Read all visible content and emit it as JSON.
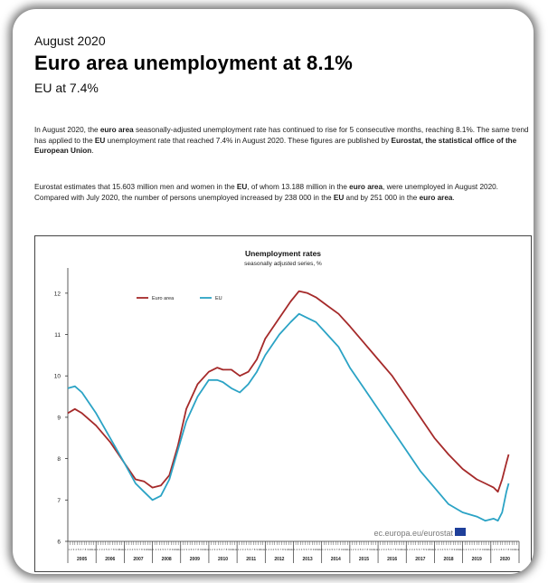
{
  "article": {
    "date": "August 2020",
    "headline": "Euro area unemployment at 8.1%",
    "subheadline": "EU at 7.4%",
    "p1": {
      "t1": "In August 2020, the ",
      "b1": "euro area",
      "t2": " seasonally-adjusted unemployment rate has continued to rise for 5 consecutive months, reaching  8.1%. The same trend has applied to the ",
      "b2": "EU",
      "t3": " unemployment rate that reached 7.4% in August 2020. These figures are published by ",
      "b3": "Eurostat, the statistical office of the European Union",
      "t4": "."
    },
    "p2": {
      "t1": "Eurostat estimates that 15.603 million men and women in the ",
      "b1": "EU",
      "t2": ", of whom 13.188 million in the ",
      "b2": "euro area",
      "t3": ", were unemployed in August 2020. Compared with July 2020, the number of persons unemployed increased by 238 000 in the ",
      "b3": "EU",
      "t4": " and by 251 000 in the ",
      "b4": "euro area",
      "t5": "."
    }
  },
  "chart_source": "ec.europa.eu/eurostat",
  "colors": {
    "euro_area": "#a52a2a",
    "eu": "#2ba3c5",
    "flag_blue": "#1f3f9a"
  },
  "chart_data": {
    "type": "line",
    "title": "Unemployment rates",
    "subtitle": "seasonally adjusted series, %",
    "xlabel": "",
    "ylabel": "",
    "ylim": [
      6,
      12.5
    ],
    "yticks": [
      6,
      7,
      8,
      9,
      10,
      11,
      12
    ],
    "years": [
      "2005",
      "2006",
      "2007",
      "2008",
      "2009",
      "2010",
      "2011",
      "2012",
      "2013",
      "2014",
      "2015",
      "2016",
      "2017",
      "2018",
      "2019",
      "2020"
    ],
    "month_ticks": [
      "1",
      "2",
      "3",
      "4",
      "5",
      "6",
      "7",
      "8",
      "9",
      "10",
      "11",
      "12"
    ],
    "legend_position": "top-left",
    "grid": false,
    "series": [
      {
        "name": "Euro area",
        "color": "#a52a2a",
        "points": [
          [
            2005.0,
            9.1
          ],
          [
            2005.25,
            9.2
          ],
          [
            2005.5,
            9.1
          ],
          [
            2006.0,
            8.8
          ],
          [
            2006.5,
            8.4
          ],
          [
            2007.0,
            7.9
          ],
          [
            2007.4,
            7.5
          ],
          [
            2007.7,
            7.45
          ],
          [
            2008.0,
            7.3
          ],
          [
            2008.3,
            7.35
          ],
          [
            2008.6,
            7.6
          ],
          [
            2008.9,
            8.3
          ],
          [
            2009.2,
            9.2
          ],
          [
            2009.6,
            9.8
          ],
          [
            2010.0,
            10.1
          ],
          [
            2010.3,
            10.2
          ],
          [
            2010.5,
            10.15
          ],
          [
            2010.8,
            10.15
          ],
          [
            2011.1,
            10.0
          ],
          [
            2011.4,
            10.1
          ],
          [
            2011.7,
            10.4
          ],
          [
            2012.0,
            10.9
          ],
          [
            2012.5,
            11.4
          ],
          [
            2012.9,
            11.8
          ],
          [
            2013.2,
            12.05
          ],
          [
            2013.5,
            12.0
          ],
          [
            2013.8,
            11.9
          ],
          [
            2014.2,
            11.7
          ],
          [
            2014.6,
            11.5
          ],
          [
            2015.0,
            11.2
          ],
          [
            2015.5,
            10.8
          ],
          [
            2016.0,
            10.4
          ],
          [
            2016.5,
            10.0
          ],
          [
            2017.0,
            9.5
          ],
          [
            2017.5,
            9.0
          ],
          [
            2018.0,
            8.5
          ],
          [
            2018.5,
            8.1
          ],
          [
            2019.0,
            7.75
          ],
          [
            2019.5,
            7.5
          ],
          [
            2019.8,
            7.4
          ],
          [
            2020.1,
            7.3
          ],
          [
            2020.25,
            7.2
          ],
          [
            2020.4,
            7.5
          ],
          [
            2020.55,
            7.9
          ],
          [
            2020.63,
            8.1
          ]
        ]
      },
      {
        "name": "EU",
        "color": "#2ba3c5",
        "points": [
          [
            2005.0,
            9.7
          ],
          [
            2005.25,
            9.75
          ],
          [
            2005.5,
            9.6
          ],
          [
            2006.0,
            9.1
          ],
          [
            2006.5,
            8.5
          ],
          [
            2007.0,
            7.9
          ],
          [
            2007.4,
            7.4
          ],
          [
            2007.7,
            7.2
          ],
          [
            2008.0,
            7.0
          ],
          [
            2008.3,
            7.1
          ],
          [
            2008.6,
            7.5
          ],
          [
            2008.9,
            8.2
          ],
          [
            2009.2,
            8.9
          ],
          [
            2009.6,
            9.5
          ],
          [
            2010.0,
            9.9
          ],
          [
            2010.3,
            9.9
          ],
          [
            2010.5,
            9.85
          ],
          [
            2010.8,
            9.7
          ],
          [
            2011.1,
            9.6
          ],
          [
            2011.4,
            9.8
          ],
          [
            2011.7,
            10.1
          ],
          [
            2012.0,
            10.5
          ],
          [
            2012.5,
            11.0
          ],
          [
            2012.9,
            11.3
          ],
          [
            2013.2,
            11.5
          ],
          [
            2013.5,
            11.4
          ],
          [
            2013.8,
            11.3
          ],
          [
            2014.2,
            11.0
          ],
          [
            2014.6,
            10.7
          ],
          [
            2015.0,
            10.2
          ],
          [
            2015.5,
            9.7
          ],
          [
            2016.0,
            9.2
          ],
          [
            2016.5,
            8.7
          ],
          [
            2017.0,
            8.2
          ],
          [
            2017.5,
            7.7
          ],
          [
            2018.0,
            7.3
          ],
          [
            2018.5,
            6.9
          ],
          [
            2019.0,
            6.7
          ],
          [
            2019.5,
            6.6
          ],
          [
            2019.8,
            6.5
          ],
          [
            2020.1,
            6.55
          ],
          [
            2020.25,
            6.5
          ],
          [
            2020.4,
            6.7
          ],
          [
            2020.55,
            7.2
          ],
          [
            2020.63,
            7.4
          ]
        ]
      }
    ]
  }
}
